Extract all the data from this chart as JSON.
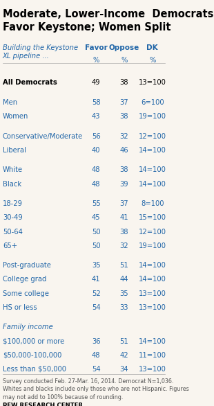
{
  "title": "Moderate, Lower-Income  Democrats\nFavor Keystone; Women Split",
  "col_header_label": "Building the Keystone\nXL pipeline ...",
  "col_headers": [
    "Favor",
    "Oppose",
    "DK"
  ],
  "col_subheaders": [
    "%",
    "%",
    "%"
  ],
  "rows": [
    {
      "label": "All Democrats",
      "favor": 49,
      "oppose": 38,
      "dk": "13=100",
      "bold": true,
      "gap_before": false
    },
    {
      "label": "Men",
      "favor": 58,
      "oppose": 37,
      "dk": "6=100",
      "bold": false,
      "gap_before": true
    },
    {
      "label": "Women",
      "favor": 43,
      "oppose": 38,
      "dk": "19=100",
      "bold": false,
      "gap_before": false
    },
    {
      "label": "Conservative/Moderate",
      "favor": 56,
      "oppose": 32,
      "dk": "12=100",
      "bold": false,
      "gap_before": true
    },
    {
      "label": "Liberal",
      "favor": 40,
      "oppose": 46,
      "dk": "14=100",
      "bold": false,
      "gap_before": false
    },
    {
      "label": "White",
      "favor": 48,
      "oppose": 38,
      "dk": "14=100",
      "bold": false,
      "gap_before": true
    },
    {
      "label": "Black",
      "favor": 48,
      "oppose": 39,
      "dk": "14=100",
      "bold": false,
      "gap_before": false
    },
    {
      "label": "18-29",
      "favor": 55,
      "oppose": 37,
      "dk": "8=100",
      "bold": false,
      "gap_before": true
    },
    {
      "label": "30-49",
      "favor": 45,
      "oppose": 41,
      "dk": "15=100",
      "bold": false,
      "gap_before": false
    },
    {
      "label": "50-64",
      "favor": 50,
      "oppose": 38,
      "dk": "12=100",
      "bold": false,
      "gap_before": false
    },
    {
      "label": "65+",
      "favor": 50,
      "oppose": 32,
      "dk": "19=100",
      "bold": false,
      "gap_before": false
    },
    {
      "label": "Post-graduate",
      "favor": 35,
      "oppose": 51,
      "dk": "14=100",
      "bold": false,
      "gap_before": true
    },
    {
      "label": "College grad",
      "favor": 41,
      "oppose": 44,
      "dk": "14=100",
      "bold": false,
      "gap_before": false
    },
    {
      "label": "Some college",
      "favor": 52,
      "oppose": 35,
      "dk": "13=100",
      "bold": false,
      "gap_before": false
    },
    {
      "label": "HS or less",
      "favor": 54,
      "oppose": 33,
      "dk": "13=100",
      "bold": false,
      "gap_before": false
    },
    {
      "label": "Family income",
      "favor": null,
      "oppose": null,
      "dk": null,
      "bold": false,
      "italic": true,
      "gap_before": true
    },
    {
      "label": "$100,000 or more",
      "favor": 36,
      "oppose": 51,
      "dk": "14=100",
      "bold": false,
      "gap_before": false
    },
    {
      "label": "$50,000-100,000",
      "favor": 48,
      "oppose": 42,
      "dk": "11=100",
      "bold": false,
      "gap_before": false
    },
    {
      "label": "Less than $50,000",
      "favor": 54,
      "oppose": 34,
      "dk": "13=100",
      "bold": false,
      "gap_before": false
    }
  ],
  "footnote": "Survey conducted Feb. 27-Mar. 16, 2014. Democrat N=1,036.\nWhites and blacks include only those who are not Hispanic. Figures\nmay not add to 100% because of rounding.",
  "source": "PEW RESEARCH CENTER",
  "bg_color": "#f9f5ef",
  "title_color": "#000000",
  "header_color": "#2166a8",
  "bold_row_color": "#000000",
  "line_color": "#aaaaaa",
  "footnote_color": "#555555"
}
